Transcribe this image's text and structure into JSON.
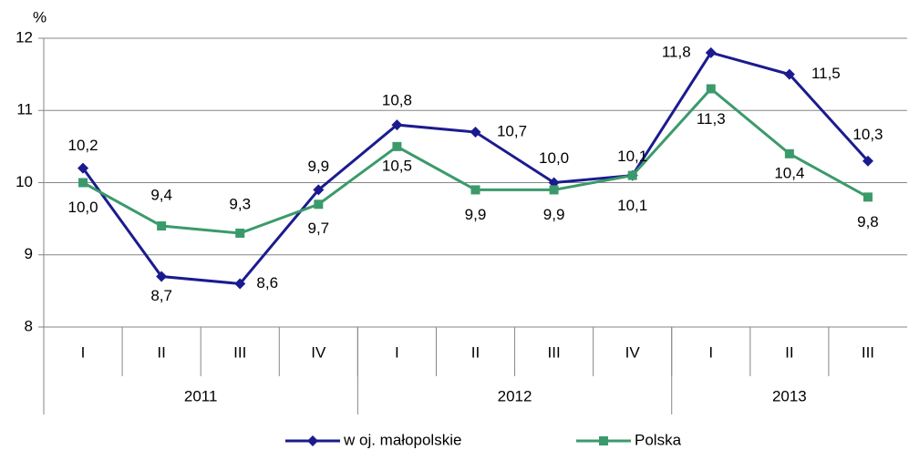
{
  "chart_data": {
    "type": "line",
    "y_unit": "%",
    "categories": [
      "I",
      "II",
      "III",
      "IV",
      "I",
      "II",
      "III",
      "IV",
      "I",
      "II",
      "III"
    ],
    "year_groups": [
      {
        "label": "2011",
        "count": 4
      },
      {
        "label": "2012",
        "count": 4
      },
      {
        "label": "2013",
        "count": 3
      }
    ],
    "series": [
      {
        "name": "w oj. małopolskie",
        "color": "#1b1b8f",
        "marker": "diamond",
        "values": [
          10.2,
          8.7,
          8.6,
          9.9,
          10.8,
          10.7,
          10.0,
          10.1,
          11.8,
          11.5,
          10.3
        ],
        "value_labels": [
          "10,2",
          "8,7",
          "8,6",
          "9,9",
          "10,8",
          "10,7",
          "10,0",
          "10,1",
          "11,8",
          "11,5",
          "10,3"
        ]
      },
      {
        "name": "Polska",
        "color": "#3b9a6b",
        "marker": "square",
        "values": [
          10.0,
          9.4,
          9.3,
          9.7,
          10.5,
          9.9,
          9.9,
          10.1,
          11.3,
          10.4,
          9.8
        ],
        "value_labels": [
          "10,0",
          "9,4",
          "9,3",
          "9,7",
          "10,5",
          "9,9",
          "9,9",
          "10,1",
          "11,3",
          "10,4",
          "9,8"
        ]
      }
    ],
    "ylim": [
      8,
      12
    ],
    "yticks": [
      8,
      9,
      10,
      11,
      12
    ],
    "grid": true,
    "legend": "bottom"
  }
}
